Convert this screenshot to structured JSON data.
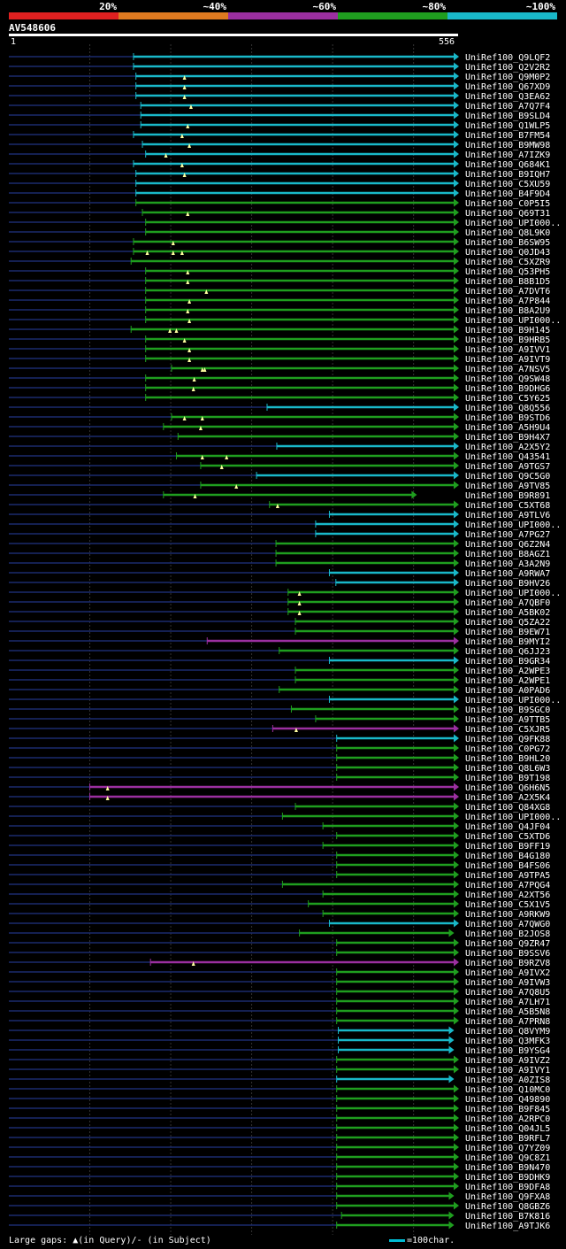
{
  "chart_data": {
    "type": "alignment",
    "query": {
      "name": "AV548606",
      "start": 1,
      "end": 556
    },
    "color_legend": [
      {
        "label": "20%",
        "color": "#e02020"
      },
      {
        "label": "~40%",
        "color": "#e07a20"
      },
      {
        "label": "~60%",
        "color": "#9b2fa0"
      },
      {
        "label": "~80%",
        "color": "#1f9e1f"
      },
      {
        "label": "~100%",
        "color": "#19b8c9"
      }
    ],
    "hits": [
      {
        "label": "UniRef100_Q9LQF2",
        "start": 155,
        "end": 556,
        "identity": 100,
        "gaps": []
      },
      {
        "label": "UniRef100_Q2V2R2",
        "start": 155,
        "end": 556,
        "identity": 100,
        "gaps": []
      },
      {
        "label": "UniRef100_Q9M0P2",
        "start": 158,
        "end": 556,
        "identity": 100,
        "gaps": [
          218
        ]
      },
      {
        "label": "UniRef100_Q67XD9",
        "start": 158,
        "end": 556,
        "identity": 100,
        "gaps": [
          218
        ]
      },
      {
        "label": "UniRef100_Q3EA62",
        "start": 158,
        "end": 556,
        "identity": 100,
        "gaps": [
          218
        ]
      },
      {
        "label": "UniRef100_A7Q7F4",
        "start": 164,
        "end": 556,
        "identity": 100,
        "gaps": [
          226
        ]
      },
      {
        "label": "UniRef100_B9SLD4",
        "start": 164,
        "end": 556,
        "identity": 100,
        "gaps": []
      },
      {
        "label": "UniRef100_Q1WLP5",
        "start": 164,
        "end": 556,
        "identity": 100,
        "gaps": [
          222
        ]
      },
      {
        "label": "UniRef100_B7FM54",
        "start": 155,
        "end": 556,
        "identity": 100,
        "gaps": [
          215
        ]
      },
      {
        "label": "UniRef100_B9MW98",
        "start": 166,
        "end": 556,
        "identity": 100,
        "gaps": [
          224
        ]
      },
      {
        "label": "UniRef100_A7IZK9",
        "start": 170,
        "end": 556,
        "identity": 100,
        "gaps": [
          195
        ]
      },
      {
        "label": "UniRef100_Q684K1",
        "start": 155,
        "end": 556,
        "identity": 100,
        "gaps": [
          215
        ]
      },
      {
        "label": "UniRef100_B9IQH7",
        "start": 158,
        "end": 556,
        "identity": 100,
        "gaps": [
          218
        ]
      },
      {
        "label": "UniRef100_C5XU59",
        "start": 158,
        "end": 556,
        "identity": 100,
        "gaps": []
      },
      {
        "label": "UniRef100_B4F9D4",
        "start": 158,
        "end": 556,
        "identity": 100,
        "gaps": []
      },
      {
        "label": "UniRef100_C0P5I5",
        "start": 158,
        "end": 556,
        "identity": 80,
        "gaps": []
      },
      {
        "label": "UniRef100_Q69T31",
        "start": 166,
        "end": 556,
        "identity": 80,
        "gaps": [
          222
        ]
      },
      {
        "label": "UniRef100_UPI000..",
        "start": 170,
        "end": 556,
        "identity": 80,
        "gaps": []
      },
      {
        "label": "UniRef100_Q8L9K0",
        "start": 170,
        "end": 556,
        "identity": 80,
        "gaps": []
      },
      {
        "label": "UniRef100_B6SW95",
        "start": 155,
        "end": 556,
        "identity": 80,
        "gaps": [
          204
        ]
      },
      {
        "label": "UniRef100_Q0JD43",
        "start": 155,
        "end": 556,
        "identity": 80,
        "gaps": [
          172,
          204,
          215
        ]
      },
      {
        "label": "UniRef100_C5XZR9",
        "start": 152,
        "end": 556,
        "identity": 80,
        "gaps": []
      },
      {
        "label": "UniRef100_Q53PH5",
        "start": 170,
        "end": 556,
        "identity": 80,
        "gaps": [
          222
        ]
      },
      {
        "label": "UniRef100_B8B1D5",
        "start": 170,
        "end": 556,
        "identity": 80,
        "gaps": [
          222
        ]
      },
      {
        "label": "UniRef100_A7DVT6",
        "start": 170,
        "end": 556,
        "identity": 80,
        "gaps": [
          245
        ]
      },
      {
        "label": "UniRef100_A7P844",
        "start": 170,
        "end": 556,
        "identity": 80,
        "gaps": [
          224
        ]
      },
      {
        "label": "UniRef100_B8A2U9",
        "start": 170,
        "end": 556,
        "identity": 80,
        "gaps": [
          222
        ]
      },
      {
        "label": "UniRef100_UPI000..",
        "start": 170,
        "end": 556,
        "identity": 80,
        "gaps": [
          224
        ]
      },
      {
        "label": "UniRef100_B9H145",
        "start": 152,
        "end": 556,
        "identity": 80,
        "gaps": [
          200,
          208
        ]
      },
      {
        "label": "UniRef100_B9HRB5",
        "start": 170,
        "end": 556,
        "identity": 80,
        "gaps": [
          218
        ]
      },
      {
        "label": "UniRef100_A9IVV1",
        "start": 170,
        "end": 556,
        "identity": 80,
        "gaps": [
          224
        ]
      },
      {
        "label": "UniRef100_A9IVT9",
        "start": 170,
        "end": 556,
        "identity": 80,
        "gaps": [
          224
        ]
      },
      {
        "label": "UniRef100_A7NSV5",
        "start": 202,
        "end": 556,
        "identity": 80,
        "gaps": [
          240,
          243
        ]
      },
      {
        "label": "UniRef100_Q9SW48",
        "start": 170,
        "end": 556,
        "identity": 80,
        "gaps": [
          230
        ]
      },
      {
        "label": "UniRef100_B9DHG6",
        "start": 170,
        "end": 556,
        "identity": 80,
        "gaps": [
          229
        ]
      },
      {
        "label": "UniRef100_C5Y625",
        "start": 170,
        "end": 556,
        "identity": 80,
        "gaps": []
      },
      {
        "label": "UniRef100_Q8Q556",
        "start": 320,
        "end": 556,
        "identity": 100,
        "gaps": []
      },
      {
        "label": "UniRef100_B9STD6",
        "start": 202,
        "end": 556,
        "identity": 80,
        "gaps": [
          218,
          240
        ]
      },
      {
        "label": "UniRef100_A5H9U4",
        "start": 192,
        "end": 556,
        "identity": 80,
        "gaps": [
          238
        ]
      },
      {
        "label": "UniRef100_B9H4X7",
        "start": 210,
        "end": 556,
        "identity": 80,
        "gaps": []
      },
      {
        "label": "UniRef100_A2X5Y2",
        "start": 332,
        "end": 556,
        "identity": 100,
        "gaps": []
      },
      {
        "label": "UniRef100_Q43541",
        "start": 208,
        "end": 556,
        "identity": 80,
        "gaps": [
          240,
          270
        ]
      },
      {
        "label": "UniRef100_A9TGS7",
        "start": 238,
        "end": 556,
        "identity": 80,
        "gaps": [
          264
        ]
      },
      {
        "label": "UniRef100_Q9C5G0",
        "start": 307,
        "end": 556,
        "identity": 100,
        "gaps": []
      },
      {
        "label": "UniRef100_A9TV85",
        "start": 238,
        "end": 556,
        "identity": 80,
        "gaps": [
          282
        ]
      },
      {
        "label": "UniRef100_B9R891",
        "start": 192,
        "end": 504,
        "identity": 80,
        "gaps": [
          231
        ]
      },
      {
        "label": "UniRef100_C5XT68",
        "start": 323,
        "end": 556,
        "identity": 80,
        "gaps": [
          333
        ]
      },
      {
        "label": "UniRef100_A9TLV6",
        "start": 397,
        "end": 556,
        "identity": 100,
        "gaps": []
      },
      {
        "label": "UniRef100_UPI000..",
        "start": 380,
        "end": 556,
        "identity": 100,
        "gaps": []
      },
      {
        "label": "UniRef100_A7PG27",
        "start": 380,
        "end": 556,
        "identity": 100,
        "gaps": []
      },
      {
        "label": "UniRef100_Q6Z2N4",
        "start": 331,
        "end": 556,
        "identity": 80,
        "gaps": []
      },
      {
        "label": "UniRef100_B8AGZ1",
        "start": 331,
        "end": 556,
        "identity": 80,
        "gaps": []
      },
      {
        "label": "UniRef100_A3A2N9",
        "start": 331,
        "end": 556,
        "identity": 80,
        "gaps": []
      },
      {
        "label": "UniRef100_A9RWA7",
        "start": 397,
        "end": 556,
        "identity": 100,
        "gaps": []
      },
      {
        "label": "UniRef100_B9HV26",
        "start": 405,
        "end": 556,
        "identity": 100,
        "gaps": []
      },
      {
        "label": "UniRef100_UPI000..",
        "start": 346,
        "end": 556,
        "identity": 80,
        "gaps": [
          360
        ]
      },
      {
        "label": "UniRef100_A7QBF0",
        "start": 346,
        "end": 556,
        "identity": 80,
        "gaps": [
          360
        ]
      },
      {
        "label": "UniRef100_A5BK02",
        "start": 346,
        "end": 556,
        "identity": 80,
        "gaps": [
          360
        ]
      },
      {
        "label": "UniRef100_Q5ZA22",
        "start": 355,
        "end": 556,
        "identity": 80,
        "gaps": []
      },
      {
        "label": "UniRef100_B9EW71",
        "start": 355,
        "end": 556,
        "identity": 80,
        "gaps": []
      },
      {
        "label": "UniRef100_B9MYI2",
        "start": 246,
        "end": 556,
        "identity": 60,
        "gaps": []
      },
      {
        "label": "UniRef100_Q6JJ23",
        "start": 335,
        "end": 556,
        "identity": 80,
        "gaps": []
      },
      {
        "label": "UniRef100_B9GR34",
        "start": 397,
        "end": 556,
        "identity": 100,
        "gaps": []
      },
      {
        "label": "UniRef100_A2WPE3",
        "start": 355,
        "end": 556,
        "identity": 80,
        "gaps": []
      },
      {
        "label": "UniRef100_A2WPE1",
        "start": 355,
        "end": 556,
        "identity": 80,
        "gaps": []
      },
      {
        "label": "UniRef100_A0PAD6",
        "start": 335,
        "end": 556,
        "identity": 80,
        "gaps": []
      },
      {
        "label": "UniRef100_UPI000..",
        "start": 397,
        "end": 556,
        "identity": 100,
        "gaps": []
      },
      {
        "label": "UniRef100_B9SGC0",
        "start": 350,
        "end": 556,
        "identity": 80,
        "gaps": []
      },
      {
        "label": "UniRef100_A9TTB5",
        "start": 380,
        "end": 556,
        "identity": 80,
        "gaps": []
      },
      {
        "label": "UniRef100_C5XJR5",
        "start": 327,
        "end": 556,
        "identity": 60,
        "gaps": [
          356
        ]
      },
      {
        "label": "UniRef100_Q9FK88",
        "start": 406,
        "end": 556,
        "identity": 100,
        "gaps": []
      },
      {
        "label": "UniRef100_C0PG72",
        "start": 406,
        "end": 556,
        "identity": 80,
        "gaps": []
      },
      {
        "label": "UniRef100_B9HL20",
        "start": 406,
        "end": 556,
        "identity": 80,
        "gaps": []
      },
      {
        "label": "UniRef100_Q8L6W3",
        "start": 406,
        "end": 556,
        "identity": 80,
        "gaps": []
      },
      {
        "label": "UniRef100_B9T198",
        "start": 406,
        "end": 556,
        "identity": 80,
        "gaps": []
      },
      {
        "label": "UniRef100_Q6H6N5",
        "start": 101,
        "end": 556,
        "identity": 60,
        "gaps": [
          123
        ]
      },
      {
        "label": "UniRef100_A2X5K4",
        "start": 101,
        "end": 556,
        "identity": 60,
        "gaps": [
          123
        ]
      },
      {
        "label": "UniRef100_Q84XG8",
        "start": 355,
        "end": 556,
        "identity": 80,
        "gaps": []
      },
      {
        "label": "UniRef100_UPI000..",
        "start": 339,
        "end": 556,
        "identity": 80,
        "gaps": []
      },
      {
        "label": "UniRef100_Q4JF04",
        "start": 389,
        "end": 556,
        "identity": 80,
        "gaps": []
      },
      {
        "label": "UniRef100_C5XTD6",
        "start": 406,
        "end": 556,
        "identity": 80,
        "gaps": []
      },
      {
        "label": "UniRef100_B9FF19",
        "start": 389,
        "end": 556,
        "identity": 80,
        "gaps": []
      },
      {
        "label": "UniRef100_B4G180",
        "start": 406,
        "end": 556,
        "identity": 80,
        "gaps": []
      },
      {
        "label": "UniRef100_B4FS06",
        "start": 406,
        "end": 556,
        "identity": 80,
        "gaps": []
      },
      {
        "label": "UniRef100_A9TPA5",
        "start": 406,
        "end": 556,
        "identity": 80,
        "gaps": []
      },
      {
        "label": "UniRef100_A7PQG4",
        "start": 339,
        "end": 556,
        "identity": 80,
        "gaps": []
      },
      {
        "label": "UniRef100_A2XT56",
        "start": 389,
        "end": 556,
        "identity": 80,
        "gaps": []
      },
      {
        "label": "UniRef100_C5X1V5",
        "start": 371,
        "end": 556,
        "identity": 80,
        "gaps": []
      },
      {
        "label": "UniRef100_A9RKW9",
        "start": 389,
        "end": 556,
        "identity": 80,
        "gaps": []
      },
      {
        "label": "UniRef100_A7QWG0",
        "start": 397,
        "end": 556,
        "identity": 100,
        "gaps": []
      },
      {
        "label": "UniRef100_B2JOS8",
        "start": 360,
        "end": 550,
        "identity": 80,
        "gaps": []
      },
      {
        "label": "UniRef100_Q9ZR47",
        "start": 406,
        "end": 556,
        "identity": 80,
        "gaps": []
      },
      {
        "label": "UniRef100_B9SSV6",
        "start": 406,
        "end": 556,
        "identity": 80,
        "gaps": []
      },
      {
        "label": "UniRef100_B9RZV8",
        "start": 176,
        "end": 556,
        "identity": 60,
        "gaps": [
          229
        ]
      },
      {
        "label": "UniRef100_A9IVX2",
        "start": 406,
        "end": 556,
        "identity": 80,
        "gaps": []
      },
      {
        "label": "UniRef100_A9IVW3",
        "start": 406,
        "end": 556,
        "identity": 80,
        "gaps": []
      },
      {
        "label": "UniRef100_A7Q8U5",
        "start": 406,
        "end": 556,
        "identity": 80,
        "gaps": []
      },
      {
        "label": "UniRef100_A7LH71",
        "start": 406,
        "end": 556,
        "identity": 80,
        "gaps": []
      },
      {
        "label": "UniRef100_A5B5N8",
        "start": 406,
        "end": 556,
        "identity": 80,
        "gaps": []
      },
      {
        "label": "UniRef100_A7PRN8",
        "start": 406,
        "end": 556,
        "identity": 80,
        "gaps": []
      },
      {
        "label": "UniRef100_Q8VYM9",
        "start": 408,
        "end": 550,
        "identity": 100,
        "gaps": []
      },
      {
        "label": "UniRef100_Q3MFK3",
        "start": 408,
        "end": 550,
        "identity": 100,
        "gaps": []
      },
      {
        "label": "UniRef100_B9YSG4",
        "start": 408,
        "end": 550,
        "identity": 100,
        "gaps": []
      },
      {
        "label": "UniRef100_A9IVZ2",
        "start": 406,
        "end": 556,
        "identity": 80,
        "gaps": []
      },
      {
        "label": "UniRef100_A9IVY1",
        "start": 406,
        "end": 556,
        "identity": 80,
        "gaps": []
      },
      {
        "label": "UniRef100_A0ZIS8",
        "start": 406,
        "end": 550,
        "identity": 100,
        "gaps": []
      },
      {
        "label": "UniRef100_Q10MC0",
        "start": 406,
        "end": 556,
        "identity": 80,
        "gaps": []
      },
      {
        "label": "UniRef100_Q49890",
        "start": 406,
        "end": 556,
        "identity": 80,
        "gaps": []
      },
      {
        "label": "UniRef100_B9F845",
        "start": 406,
        "end": 556,
        "identity": 80,
        "gaps": []
      },
      {
        "label": "UniRef100_A2RPC0",
        "start": 406,
        "end": 556,
        "identity": 80,
        "gaps": []
      },
      {
        "label": "UniRef100_Q04JL5",
        "start": 406,
        "end": 556,
        "identity": 80,
        "gaps": []
      },
      {
        "label": "UniRef100_B9RFL7",
        "start": 406,
        "end": 556,
        "identity": 80,
        "gaps": []
      },
      {
        "label": "UniRef100_Q7YZ09",
        "start": 406,
        "end": 556,
        "identity": 80,
        "gaps": []
      },
      {
        "label": "UniRef100_Q9C8Z1",
        "start": 406,
        "end": 556,
        "identity": 80,
        "gaps": []
      },
      {
        "label": "UniRef100_B9N470",
        "start": 406,
        "end": 556,
        "identity": 80,
        "gaps": []
      },
      {
        "label": "UniRef100_B9DHK9",
        "start": 406,
        "end": 556,
        "identity": 80,
        "gaps": []
      },
      {
        "label": "UniRef100_B9DFA8",
        "start": 406,
        "end": 556,
        "identity": 80,
        "gaps": []
      },
      {
        "label": "UniRef100_Q9FXA8",
        "start": 406,
        "end": 550,
        "identity": 80,
        "gaps": []
      },
      {
        "label": "UniRef100_Q8GBZ6",
        "start": 406,
        "end": 556,
        "identity": 80,
        "gaps": []
      },
      {
        "label": "UniRef100_B7K816",
        "start": 412,
        "end": 550,
        "identity": 80,
        "gaps": []
      },
      {
        "label": "UniRef100_A9TJK6",
        "start": 406,
        "end": 550,
        "identity": 80,
        "gaps": []
      }
    ],
    "footer_text": "Large gaps: ▲(in Query)/- (in Subject)",
    "scale_text": "=100char."
  }
}
